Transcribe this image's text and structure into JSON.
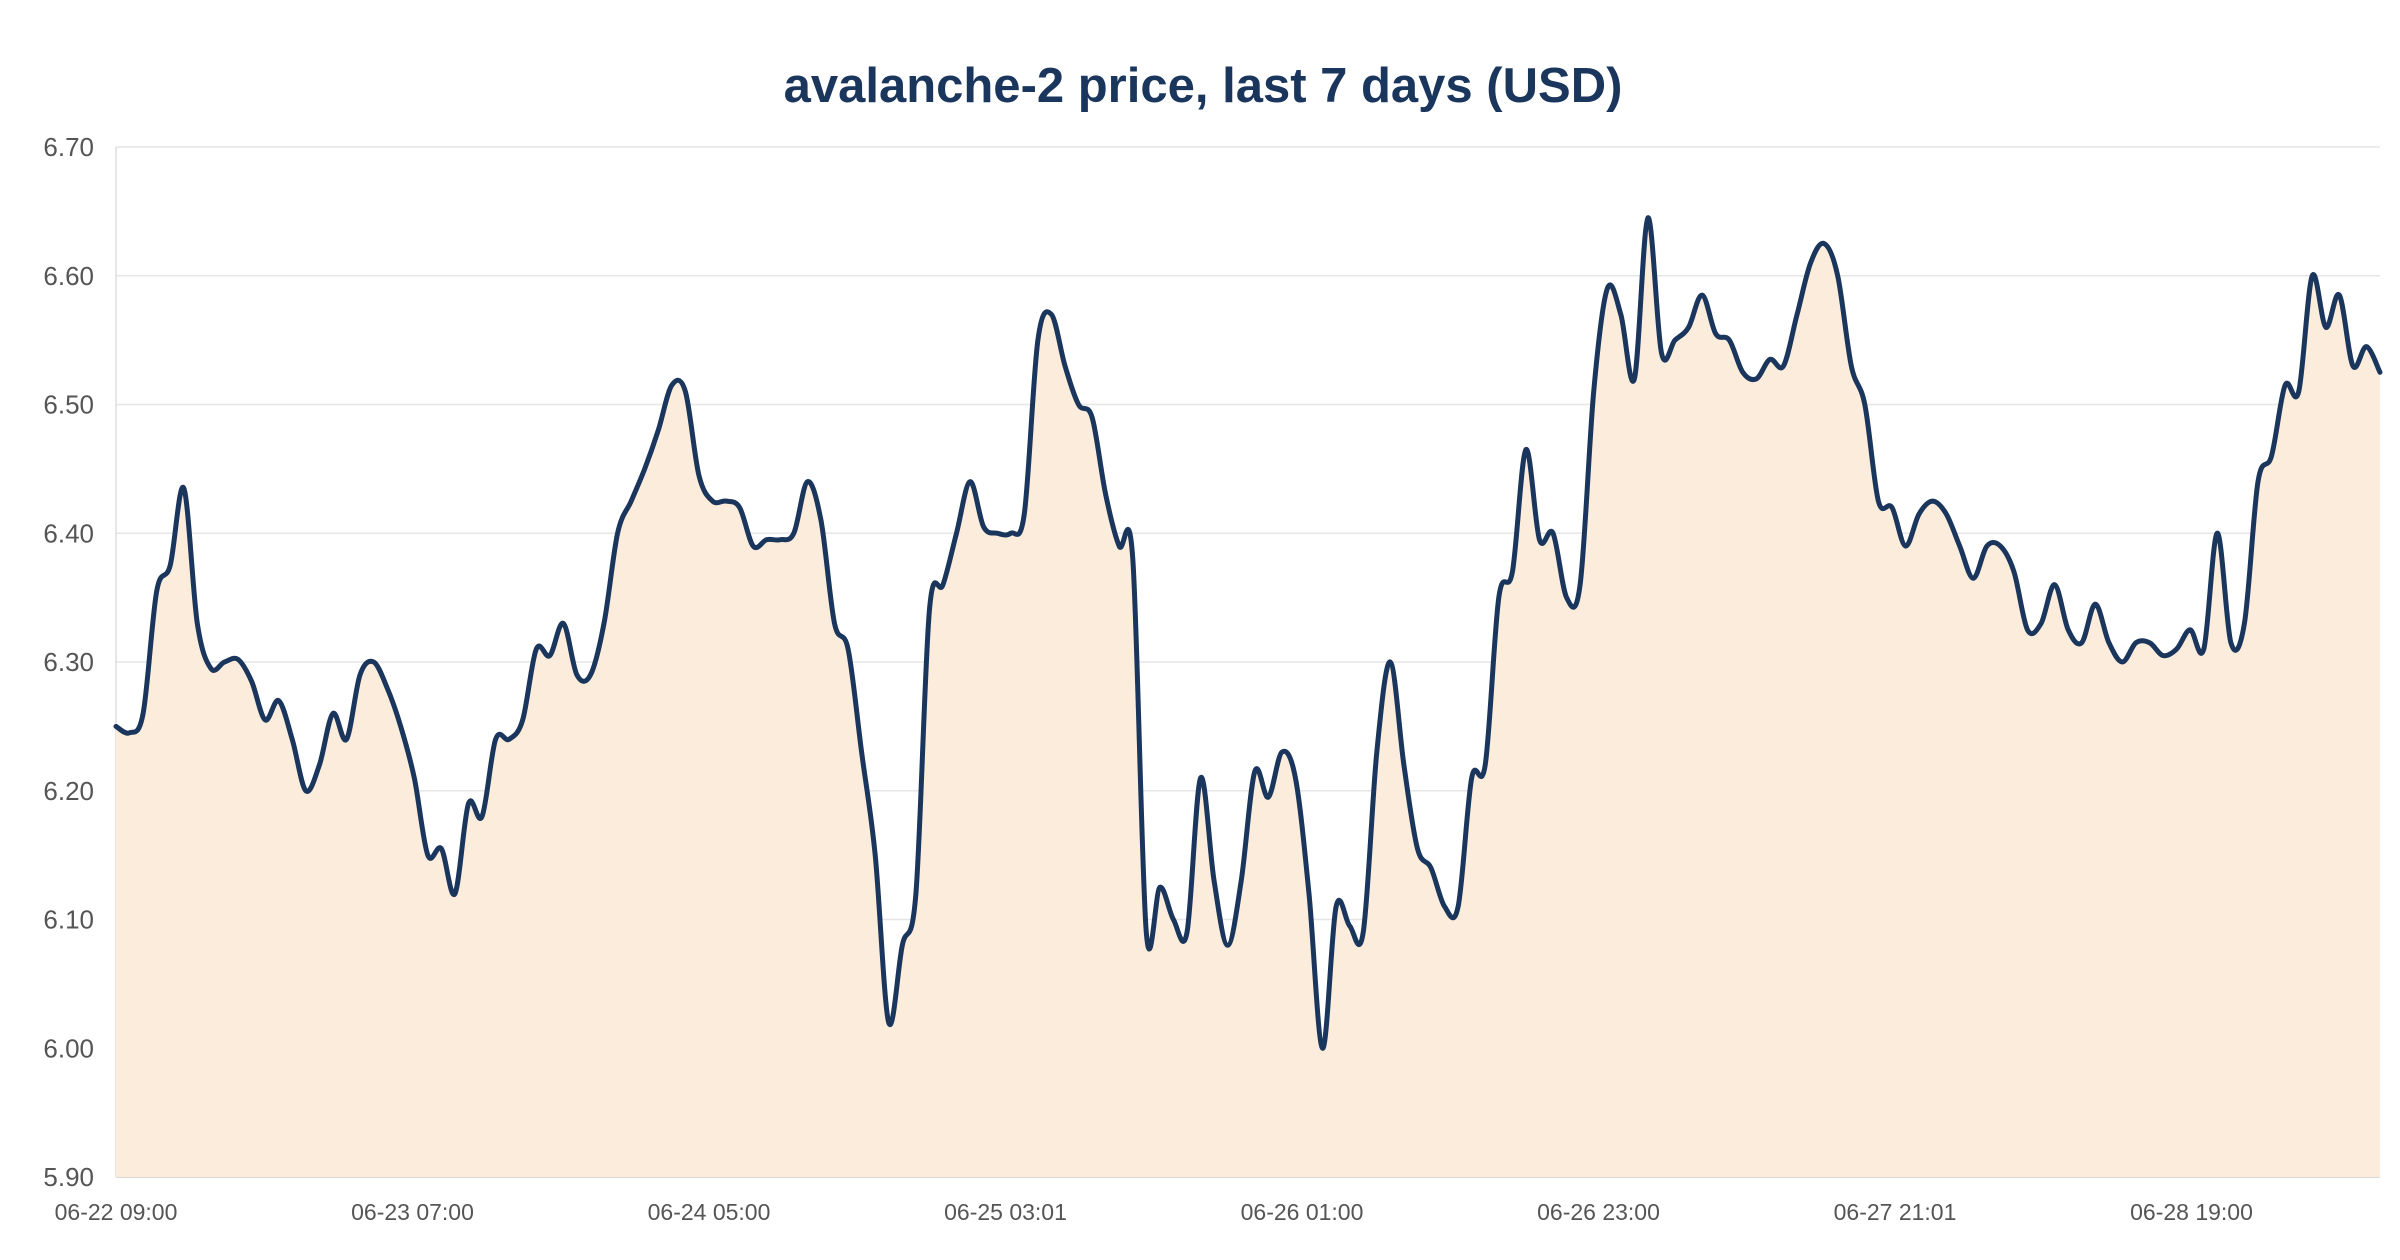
{
  "colors": {
    "line": "#1b365d",
    "fill": "#fcecdb",
    "grid": "#e6e6e6",
    "text": "#555555",
    "title": "#1b365d"
  },
  "chart_data": {
    "type": "area",
    "title": "avalanche-2 price, last 7 days  (USD)",
    "xlabel": "",
    "ylabel": "",
    "ylim": [
      5.9,
      6.7
    ],
    "yticks": [
      "6.70",
      "6.60",
      "6.50",
      "6.40",
      "6.30",
      "6.20",
      "6.10",
      "6.00",
      "5.90"
    ],
    "xticks": [
      "06-22 09:00",
      "06-23 07:00",
      "06-24 05:00",
      "06-25 03:01",
      "06-26 01:00",
      "06-26 23:00",
      "06-27 21:01",
      "06-28 19:00"
    ],
    "x_start": "06-22 09:00",
    "x_end": "06-29 06:00",
    "grid": true,
    "legend": "none",
    "series": [
      {
        "values": [
          6.25,
          6.245,
          6.26,
          6.355,
          6.375,
          6.435,
          6.33,
          6.295,
          6.3,
          6.302,
          6.285,
          6.255,
          6.27,
          6.24,
          6.2,
          6.22,
          6.26,
          6.24,
          6.29,
          6.3,
          6.28,
          6.25,
          6.21,
          6.15,
          6.155,
          6.12,
          6.19,
          6.18,
          6.24,
          6.24,
          6.255,
          6.31,
          6.305,
          6.33,
          6.29,
          6.29,
          6.33,
          6.4,
          6.425,
          6.45,
          6.48,
          6.515,
          6.51,
          6.445,
          6.425,
          6.425,
          6.42,
          6.39,
          6.395,
          6.395,
          6.4,
          6.44,
          6.41,
          6.33,
          6.31,
          6.23,
          6.15,
          6.02,
          6.08,
          6.12,
          6.34,
          6.36,
          6.4,
          6.44,
          6.405,
          6.4,
          6.4,
          6.415,
          6.55,
          6.57,
          6.53,
          6.5,
          6.49,
          6.43,
          6.39,
          6.38,
          6.09,
          6.125,
          6.1,
          6.09,
          6.21,
          6.13,
          6.08,
          6.13,
          6.215,
          6.195,
          6.23,
          6.21,
          6.12,
          6.0,
          6.11,
          6.095,
          6.09,
          6.23,
          6.3,
          6.22,
          6.155,
          6.14,
          6.11,
          6.11,
          6.21,
          6.22,
          6.35,
          6.37,
          6.465,
          6.395,
          6.4,
          6.35,
          6.36,
          6.51,
          6.59,
          6.57,
          6.52,
          6.645,
          6.54,
          6.55,
          6.56,
          6.585,
          6.555,
          6.55,
          6.525,
          6.52,
          6.535,
          6.53,
          6.57,
          6.61,
          6.625,
          6.6,
          6.53,
          6.5,
          6.425,
          6.42,
          6.39,
          6.415,
          6.425,
          6.415,
          6.39,
          6.365,
          6.39,
          6.39,
          6.37,
          6.325,
          6.33,
          6.36,
          6.325,
          6.315,
          6.345,
          6.315,
          6.3,
          6.315,
          6.315,
          6.305,
          6.31,
          6.325,
          6.31,
          6.4,
          6.315,
          6.33,
          6.44,
          6.46,
          6.515,
          6.51,
          6.6,
          6.56,
          6.585,
          6.53,
          6.545,
          6.525
        ]
      }
    ]
  }
}
